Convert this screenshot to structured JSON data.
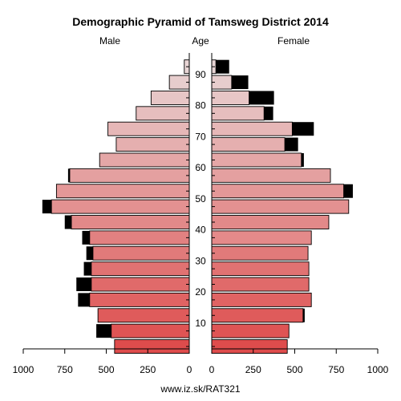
{
  "chart_data": {
    "type": "bar",
    "title": "Demographic Pyramid of Tamsweg District 2014",
    "left_label": "Male",
    "center_label": "Age",
    "right_label": "Female",
    "source": "www.iz.sk/RAT321",
    "x_ticks": [
      1000,
      750,
      500,
      250,
      0
    ],
    "x_ticks_right": [
      0,
      250,
      500,
      750,
      1000
    ],
    "age_ticks": [
      "10",
      "20",
      "30",
      "40",
      "50",
      "60",
      "70",
      "80",
      "90"
    ],
    "xlim": [
      0,
      1000
    ],
    "age_groups": [
      "0-4",
      "5-9",
      "10-14",
      "15-19",
      "20-24",
      "25-29",
      "30-34",
      "35-39",
      "40-44",
      "45-49",
      "50-54",
      "55-59",
      "60-64",
      "65-69",
      "70-74",
      "75-79",
      "80-84",
      "85-89",
      "90+"
    ],
    "male": {
      "values": [
        450,
        470,
        550,
        600,
        590,
        590,
        580,
        600,
        710,
        830,
        800,
        720,
        540,
        440,
        490,
        320,
        230,
        120,
        30
      ],
      "excess": [
        0,
        90,
        0,
        70,
        90,
        45,
        40,
        45,
        40,
        55,
        0,
        10,
        0,
        0,
        0,
        0,
        0,
        0,
        0
      ]
    },
    "female": {
      "values": [
        455,
        465,
        550,
        600,
        585,
        585,
        580,
        600,
        705,
        825,
        795,
        715,
        540,
        440,
        485,
        315,
        225,
        120,
        25
      ],
      "excess": [
        0,
        0,
        10,
        0,
        0,
        0,
        0,
        0,
        0,
        0,
        55,
        0,
        15,
        80,
        130,
        55,
        150,
        100,
        80
      ]
    },
    "colors": {
      "young": "#de4c4c",
      "old": "#e8d5d5",
      "excess": "#000000",
      "female_35_39": "#e48a8a"
    }
  }
}
